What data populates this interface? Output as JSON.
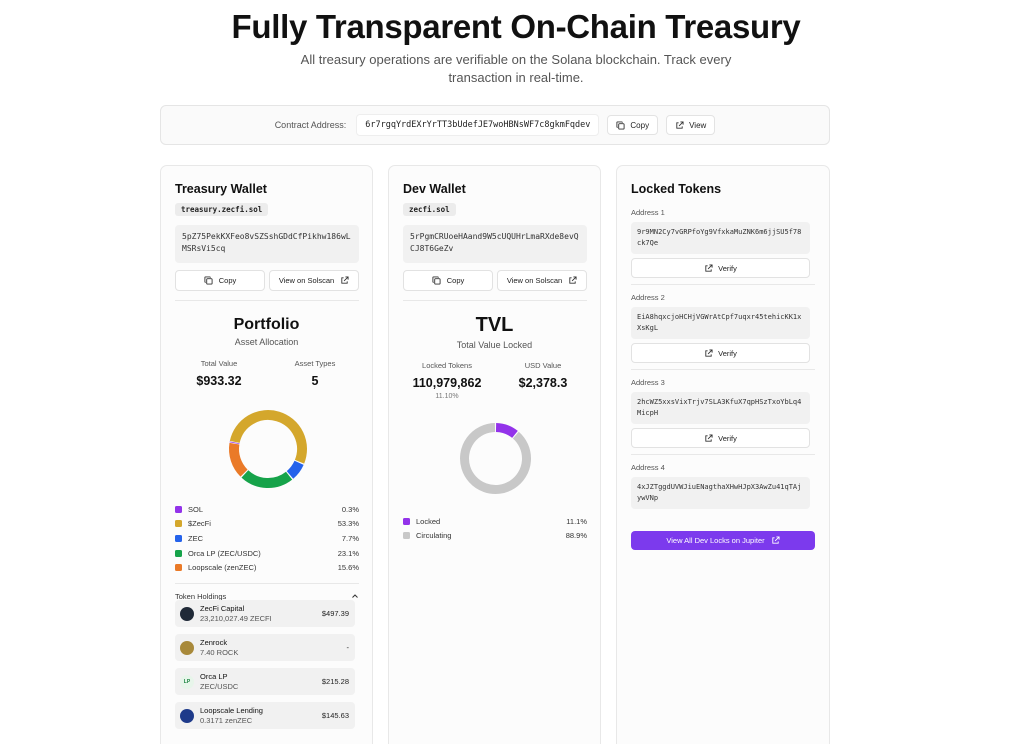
{
  "hero": {
    "title": "Fully Transparent On-Chain Treasury",
    "subtitle": "All treasury operations are verifiable on the Solana blockchain. Track every transaction in real-time."
  },
  "contract": {
    "label": "Contract Address:",
    "address": "6r7rgqYrdEXrYrTT3bUdefJE7woHBNsWF7c8gkmFqdev",
    "copy_label": "Copy",
    "view_label": "View"
  },
  "treasury": {
    "title": "Treasury Wallet",
    "domain": "treasury.zecfi.sol",
    "address": "5pZ75PekKXFeo8vSZSshGDdCfPikhw186wLMSRsVi5cq",
    "copy_label": "Copy",
    "solscan_label": "View on Solscan",
    "portfolio_title": "Portfolio",
    "portfolio_sub": "Asset Allocation",
    "stat1_label": "Total Value",
    "stat1_value": "$933.32",
    "stat2_label": "Asset Types",
    "stat2_value": "5",
    "allocation": [
      {
        "name": "SOL",
        "pct_label": "0.3%",
        "value": 0.3,
        "color": "#9333ea"
      },
      {
        "name": "$ZecFi",
        "pct_label": "53.3%",
        "value": 53.3,
        "color": "#d4a72c"
      },
      {
        "name": "ZEC",
        "pct_label": "7.7%",
        "value": 7.7,
        "color": "#2563eb"
      },
      {
        "name": "Orca LP (ZEC/USDC)",
        "pct_label": "23.1%",
        "value": 23.1,
        "color": "#16a34a"
      },
      {
        "name": "Loopscale (zenZEC)",
        "pct_label": "15.6%",
        "value": 15.6,
        "color": "#ea7a28"
      }
    ],
    "holdings_label": "Token Holdings",
    "holdings": [
      {
        "name": "ZecFi Capital",
        "amount": "23,210,027.49 ZECFI",
        "value": "$497.39",
        "icon": "zecfi-icon",
        "icon_color": "#1f2937",
        "icon_text": ""
      },
      {
        "name": "Zenrock",
        "amount": "7.40 ROCK",
        "value": "-",
        "icon": "zenrock-icon",
        "icon_color": "#a8893a",
        "icon_text": ""
      },
      {
        "name": "Orca LP",
        "amount": "ZEC/USDC",
        "value": "$215.28",
        "icon": "orca-lp-icon",
        "icon_color": "#e7f5ea",
        "icon_text": "LP"
      },
      {
        "name": "Loopscale Lending",
        "amount": "0.3171 zenZEC",
        "value": "$145.63",
        "icon": "loopscale-icon",
        "icon_color": "#1e3a8a",
        "icon_text": ""
      }
    ]
  },
  "dev": {
    "title": "Dev Wallet",
    "domain": "zecfi.sol",
    "address": "5rPgmCRUoeHAand9W5cUQUHrLmaRXde8evQCJ8T6GeZv",
    "copy_label": "Copy",
    "solscan_label": "View on Solscan",
    "tvl_title": "TVL",
    "tvl_sub": "Total Value Locked",
    "stat1_label": "Locked Tokens",
    "stat1_value": "110,979,862",
    "stat1_sub": "11.10%",
    "stat2_label": "USD Value",
    "stat2_value": "$2,378.3",
    "allocation": [
      {
        "name": "Locked",
        "pct_label": "11.1%",
        "value": 11.1,
        "color": "#9333ea"
      },
      {
        "name": "Circulating",
        "pct_label": "88.9%",
        "value": 88.9,
        "color": "#c8c8c8"
      }
    ]
  },
  "locked": {
    "title": "Locked Tokens",
    "verify_label": "Verify",
    "items": [
      {
        "label": "Address 1",
        "address": "9r9MN2Cy7vGRPfoYg9VfxkaMuZNK6m6jjSU5f78ck7Qe"
      },
      {
        "label": "Address 2",
        "address": "EiA8hqxcjoHCHjVGWrAtCpf7uqxr45tehicKK1xXsKgL"
      },
      {
        "label": "Address 3",
        "address": "2hcWZ5xxsVixTrjv7SLA3KfuX7qpHSzTxoYbLq4MicpH"
      },
      {
        "label": "Address 4",
        "address": "4xJZTggdUVWJiuENagthaXHwHJpX3AwZu41qTAjywVNp"
      }
    ],
    "jupiter_label": "View All Dev Locks on Jupiter"
  }
}
